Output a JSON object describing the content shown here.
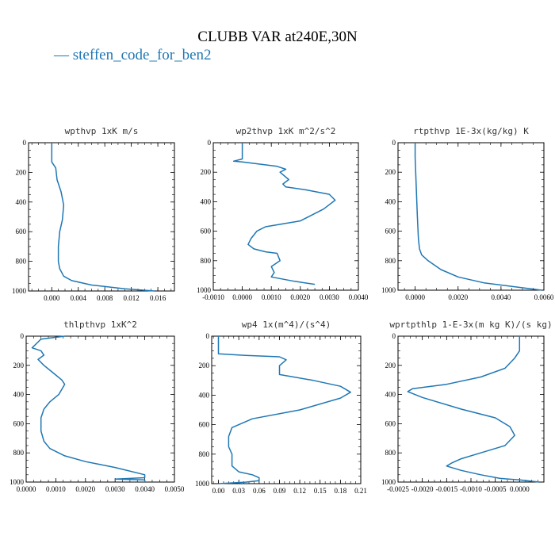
{
  "title": "CLUBB VAR at240E,30N",
  "legend": {
    "label": "steffen_code_for_ben2",
    "color": "#1f77b4"
  },
  "line_color": "#1f77b4",
  "chart_data": [
    {
      "type": "line",
      "title": "wpthvp  1xK m/s",
      "xlim": [
        -0.0035,
        0.0185
      ],
      "ylim": [
        1000,
        0
      ],
      "xticks": [
        0.0,
        0.004,
        0.008,
        0.012,
        0.016
      ],
      "xtick_labels": [
        "0.000",
        "0.004",
        "0.008",
        "0.012",
        "0.016"
      ],
      "yticks": [
        0,
        200,
        400,
        600,
        800,
        1000
      ],
      "ytick_labels": [
        "0",
        "200",
        "400",
        "600",
        "800",
        "1000"
      ],
      "series": [
        {
          "x": [
            0.0,
            0.0,
            0.0,
            0.0006,
            0.0008,
            0.0014,
            0.0018,
            0.0016,
            0.0012,
            0.001,
            0.001,
            0.0012,
            0.0018,
            0.003,
            0.006,
            0.011,
            0.0155
          ],
          "y": [
            0,
            50,
            130,
            170,
            250,
            330,
            420,
            520,
            600,
            700,
            800,
            850,
            900,
            930,
            960,
            985,
            1000
          ]
        }
      ]
    },
    {
      "type": "line",
      "title": "wp2thvp  1xK m^2/s^2",
      "xlim": [
        -0.001,
        0.004
      ],
      "ylim": [
        1000,
        0
      ],
      "xticks": [
        -0.001,
        0.0,
        0.001,
        0.002,
        0.003,
        0.004
      ],
      "xtick_labels": [
        "-0.0010",
        "0.0000",
        "0.0010",
        "0.0020",
        "0.0030",
        "0.0040"
      ],
      "yticks": [
        0,
        200,
        400,
        600,
        800,
        1000
      ],
      "ytick_labels": [
        "0",
        "200",
        "400",
        "600",
        "800",
        "1000"
      ],
      "series": [
        {
          "x": [
            0.0,
            0.0,
            0.0,
            -0.0003,
            0.0,
            0.0012,
            0.0015,
            0.0013,
            0.0016,
            0.0014,
            0.0015,
            0.0022,
            0.003,
            0.0032,
            0.0028,
            0.002,
            0.0008,
            0.0005,
            0.0003,
            0.0002,
            0.0004,
            0.0008,
            0.0012,
            0.0013,
            0.001,
            0.0011,
            0.001,
            0.0018,
            0.0025
          ],
          "y": [
            0,
            60,
            110,
            125,
            130,
            160,
            180,
            200,
            250,
            280,
            300,
            320,
            350,
            390,
            450,
            530,
            570,
            600,
            650,
            690,
            720,
            740,
            750,
            800,
            840,
            880,
            910,
            940,
            960
          ]
        }
      ]
    },
    {
      "type": "line",
      "title": "rtpthvp  1E-3x(kg/kg) K",
      "xlim": [
        -0.0008,
        0.006
      ],
      "ylim": [
        1000,
        0
      ],
      "xticks": [
        0.0,
        0.002,
        0.004,
        0.006
      ],
      "xtick_labels": [
        "0.0000",
        "0.0020",
        "0.0040",
        "0.0060"
      ],
      "yticks": [
        0,
        200,
        400,
        600,
        800,
        1000
      ],
      "ytick_labels": [
        "0",
        "200",
        "400",
        "600",
        "800",
        "1000"
      ],
      "series": [
        {
          "x": [
            0.0,
            0.0,
            5e-05,
            0.0001,
            0.00015,
            0.0002,
            0.0003,
            0.0006,
            0.0012,
            0.002,
            0.0032,
            0.0048,
            0.0059
          ],
          "y": [
            0,
            100,
            300,
            500,
            650,
            720,
            760,
            800,
            860,
            910,
            950,
            980,
            1000
          ]
        }
      ]
    },
    {
      "type": "line",
      "title": "thlpthvp  1xK^2",
      "xlim": [
        0.0,
        0.005
      ],
      "ylim": [
        1000,
        0
      ],
      "xticks": [
        0.0,
        0.001,
        0.002,
        0.003,
        0.004,
        0.005
      ],
      "xtick_labels": [
        "0.0000",
        "0.0010",
        "0.0020",
        "0.0030",
        "0.0040",
        "0.0050"
      ],
      "yticks": [
        0,
        200,
        400,
        600,
        800,
        1000
      ],
      "ytick_labels": [
        "0",
        "200",
        "400",
        "600",
        "800",
        "1000"
      ],
      "series": [
        {
          "x": [
            0.0013,
            0.0005,
            0.0004,
            0.0002,
            0.0005,
            0.0006,
            0.0004,
            0.0006,
            0.0009,
            0.0012,
            0.0013,
            0.0011,
            0.0008,
            0.0006,
            0.0005,
            0.0005,
            0.0006,
            0.0008,
            0.0013,
            0.002,
            0.003,
            0.004,
            0.004,
            0.003,
            0.004,
            0.004
          ],
          "y": [
            0,
            20,
            40,
            80,
            100,
            130,
            160,
            200,
            250,
            300,
            330,
            400,
            450,
            500,
            560,
            650,
            720,
            770,
            820,
            860,
            900,
            950,
            970,
            980,
            985,
            1000
          ]
        }
      ]
    },
    {
      "type": "line",
      "title": "wp4  1x(m^4)/(s^4)",
      "xlim": [
        -0.01,
        0.21
      ],
      "ylim": [
        1000,
        0
      ],
      "xticks": [
        0.0,
        0.03,
        0.06,
        0.09,
        0.12,
        0.15,
        0.18,
        0.21
      ],
      "xtick_labels": [
        "0.00",
        "0.03",
        "0.06",
        "0.09",
        "0.12",
        "0.15",
        "0.18",
        "0.21"
      ],
      "yticks": [
        0,
        200,
        400,
        600,
        800,
        1000
      ],
      "ytick_labels": [
        "0",
        "200",
        "400",
        "600",
        "800",
        "1000"
      ],
      "series": [
        {
          "x": [
            0.0,
            0.0,
            0.0,
            0.04,
            0.09,
            0.1,
            0.09,
            0.09,
            0.14,
            0.18,
            0.195,
            0.18,
            0.12,
            0.05,
            0.02,
            0.015,
            0.015,
            0.02,
            0.02,
            0.02,
            0.03,
            0.05,
            0.06,
            0.06,
            0.04,
            0.0
          ],
          "y": [
            0,
            80,
            120,
            130,
            140,
            160,
            200,
            260,
            300,
            340,
            380,
            420,
            500,
            560,
            620,
            680,
            750,
            800,
            850,
            880,
            920,
            940,
            960,
            980,
            990,
            1000
          ]
        }
      ]
    },
    {
      "type": "line",
      "title": "wprtpthlp  1-E-3x(m kg K)/(s kg)",
      "xlim": [
        -0.0025,
        0.0005
      ],
      "ylim": [
        1000,
        0
      ],
      "xticks": [
        -0.0025,
        -0.002,
        -0.0015,
        -0.001,
        -0.0005,
        0.0
      ],
      "xtick_labels": [
        "-0.0025",
        "-0.0020",
        "-0.0015",
        "-0.0010",
        "-0.0005",
        "0.0000"
      ],
      "yticks": [
        0,
        200,
        400,
        600,
        800,
        1000
      ],
      "ytick_labels": [
        "0",
        "200",
        "400",
        "600",
        "800",
        "1000"
      ],
      "series": [
        {
          "x": [
            0.0,
            0.0,
            -0.0001,
            -0.0003,
            -0.0008,
            -0.0015,
            -0.0022,
            -0.0023,
            -0.002,
            -0.0012,
            -0.0005,
            -0.0002,
            -0.0001,
            -0.0003,
            -0.0008,
            -0.0012,
            -0.0014,
            -0.0015,
            -0.0012,
            -0.0008,
            -0.0004,
            0.0,
            0.0004
          ],
          "y": [
            0,
            100,
            150,
            220,
            280,
            330,
            360,
            380,
            420,
            500,
            560,
            620,
            680,
            750,
            800,
            840,
            870,
            890,
            920,
            950,
            975,
            985,
            1000
          ]
        }
      ]
    }
  ]
}
